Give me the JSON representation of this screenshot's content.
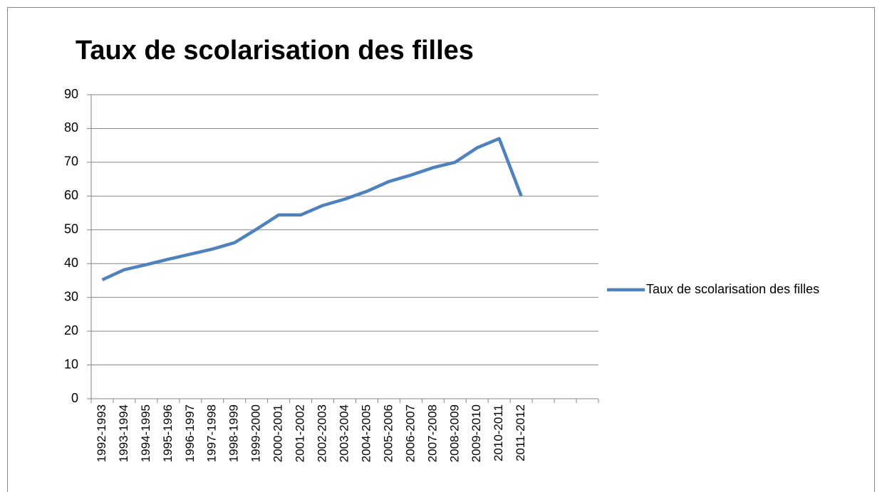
{
  "chart_data": {
    "type": "line",
    "title": "Taux de scolarisation des filles",
    "categories": [
      "1992-1993",
      "1993-1994",
      "1994-1995",
      "1995-1996",
      "1996-1997",
      "1997-1998",
      "1998-1999",
      "1999-2000",
      "2000-2001",
      "2001-2002",
      "2002-2003",
      "2003-2004",
      "2004-2005",
      "2005-2006",
      "2006-2007",
      "2007-2008",
      "2008-2009",
      "2009-2010",
      "2010-2011",
      "2011-2012",
      null,
      null,
      null
    ],
    "series": [
      {
        "name": "Taux de scolarisation des filles",
        "color": "#4f81bd",
        "values": [
          35.2,
          38.2,
          39.7,
          41.3,
          42.8,
          44.3,
          46.2,
          50.2,
          54.4,
          54.4,
          57.2,
          59.1,
          61.4,
          64.3,
          66.2,
          68.4,
          70,
          74.3,
          77,
          60,
          null,
          null,
          null
        ]
      }
    ],
    "ylim": [
      0,
      90
    ],
    "yticks": [
      0,
      10,
      20,
      30,
      40,
      50,
      60,
      70,
      80,
      90
    ],
    "grid": true,
    "legend": "right"
  }
}
